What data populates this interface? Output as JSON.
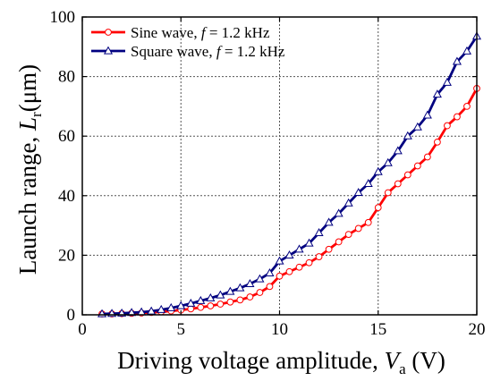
{
  "chart_data": {
    "type": "line",
    "xlim": [
      0,
      20
    ],
    "ylim": [
      0,
      100
    ],
    "xticks": [
      "0",
      "5",
      "10",
      "15",
      "20"
    ],
    "yticks": [
      "0",
      "20",
      "40",
      "60",
      "80",
      "100"
    ],
    "grid": true,
    "legend_position": "top-left",
    "xlabel": {
      "prefix": "Driving voltage amplitude, ",
      "var": "V",
      "sub": "a",
      "suffix": " (V)"
    },
    "ylabel": {
      "prefix": "Launch range, ",
      "var": "L",
      "sub": "r",
      "suffix": "(μm)"
    },
    "series": [
      {
        "name": {
          "prefix": "Sine wave, ",
          "var": "f",
          "suffix": " = 1.2 kHz"
        },
        "color": "#ff0000",
        "marker": "circle",
        "x": [
          1.0,
          1.5,
          2.0,
          2.5,
          3.0,
          3.5,
          4.0,
          4.5,
          5.0,
          5.5,
          6.0,
          6.5,
          7.0,
          7.5,
          8.0,
          8.5,
          9.0,
          9.5,
          10.0,
          10.5,
          11.0,
          11.5,
          12.0,
          12.5,
          13.0,
          13.5,
          14.0,
          14.5,
          15.0,
          15.5,
          16.0,
          16.5,
          17.0,
          17.5,
          18.0,
          18.5,
          19.0,
          19.5,
          20.0
        ],
        "y": [
          0.3,
          0.3,
          0.4,
          0.5,
          0.6,
          0.8,
          1.0,
          1.3,
          1.6,
          2.0,
          2.5,
          3.0,
          3.6,
          4.3,
          5.0,
          6.0,
          7.5,
          9.5,
          13.0,
          14.5,
          16.0,
          17.5,
          19.5,
          22.0,
          24.5,
          27.0,
          29.0,
          31.0,
          36.0,
          41.0,
          44.0,
          47.0,
          50.0,
          53.0,
          58.0,
          63.5,
          66.5,
          70.0,
          76.0
        ]
      },
      {
        "name": {
          "prefix": "Square wave, ",
          "var": "f",
          "suffix": " = 1.2 kHz"
        },
        "color": "#000080",
        "marker": "triangle",
        "x": [
          1.0,
          1.5,
          2.0,
          2.5,
          3.0,
          3.5,
          4.0,
          4.5,
          5.0,
          5.5,
          6.0,
          6.5,
          7.0,
          7.5,
          8.0,
          8.5,
          9.0,
          9.5,
          10.0,
          10.5,
          11.0,
          11.5,
          12.0,
          12.5,
          13.0,
          13.5,
          14.0,
          14.5,
          15.0,
          15.5,
          16.0,
          16.5,
          17.0,
          17.5,
          18.0,
          18.5,
          19.0,
          19.5,
          20.0
        ],
        "y": [
          0.3,
          0.4,
          0.5,
          0.7,
          0.9,
          1.2,
          1.7,
          2.3,
          3.0,
          3.8,
          4.7,
          5.6,
          6.6,
          7.8,
          9.0,
          10.4,
          12.0,
          14.0,
          18.0,
          20.0,
          22.0,
          24.0,
          27.5,
          31.0,
          34.0,
          37.5,
          41.0,
          44.0,
          48.0,
          51.0,
          55.0,
          60.0,
          63.0,
          67.0,
          74.0,
          78.0,
          85.0,
          88.5,
          93.5
        ]
      }
    ]
  }
}
